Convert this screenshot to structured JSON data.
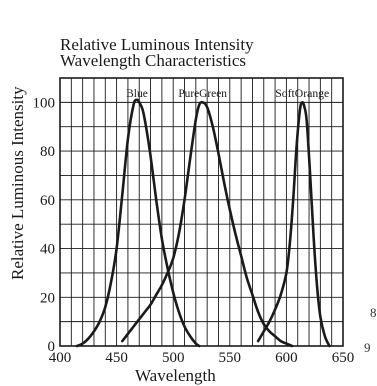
{
  "chart_data": {
    "type": "line",
    "title_lines": [
      "Relative Luminous Intensity",
      "Wavelength Characteristics"
    ],
    "xlabel": "Wavelength",
    "ylabel": "Relative Luminous Intensity",
    "xlim": [
      400,
      650
    ],
    "ylim": [
      0,
      110
    ],
    "x_ticks": [
      400,
      450,
      500,
      550,
      600,
      650
    ],
    "y_ticks": [
      0,
      20,
      40,
      60,
      80,
      100
    ],
    "grid": true,
    "series": [
      {
        "name": "Blue",
        "x": [
          415,
          420,
          425,
          430,
          435,
          440,
          445,
          450,
          455,
          460,
          465,
          468,
          470,
          473,
          476,
          480,
          485,
          490,
          495,
          500,
          505,
          510,
          515,
          520,
          523
        ],
        "y": [
          0,
          1,
          3,
          6,
          10,
          16,
          26,
          40,
          62,
          85,
          99,
          101,
          100,
          97,
          90,
          78,
          60,
          44,
          32,
          22,
          14,
          8,
          4,
          1,
          0
        ]
      },
      {
        "name": "PureGreen",
        "x": [
          455,
          460,
          465,
          470,
          475,
          480,
          485,
          490,
          495,
          500,
          505,
          510,
          515,
          520,
          523,
          526,
          530,
          535,
          540,
          545,
          550,
          555,
          560,
          565,
          570,
          575,
          580,
          585,
          590,
          595,
          600,
          605
        ],
        "y": [
          2,
          5,
          8,
          11,
          14,
          17,
          21,
          25,
          30,
          36,
          46,
          60,
          77,
          93,
          99,
          100,
          98,
          90,
          79,
          67,
          56,
          46,
          37,
          28,
          21,
          14,
          9,
          6,
          4,
          2,
          1,
          0
        ]
      },
      {
        "name": "SoftOrange",
        "x": [
          575,
          580,
          585,
          590,
          595,
          600,
          603,
          606,
          609,
          612,
          614,
          616,
          618,
          621,
          624,
          627,
          630,
          634,
          638
        ],
        "y": [
          2,
          6,
          10,
          15,
          21,
          30,
          42,
          60,
          82,
          97,
          100,
          98,
          92,
          70,
          45,
          25,
          12,
          4,
          0
        ]
      }
    ],
    "edge_marks": [
      "8",
      "9"
    ],
    "line_color": "#1a1a1a",
    "grid_color": "#1a1a1a"
  }
}
